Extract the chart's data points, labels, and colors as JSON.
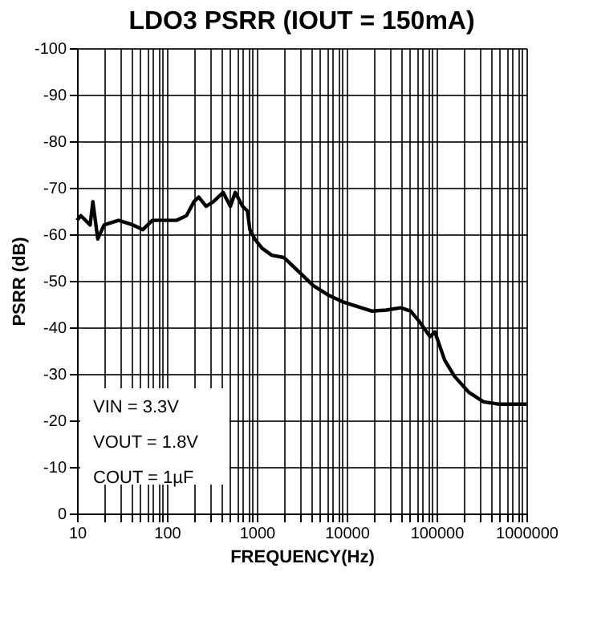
{
  "chart_data": {
    "type": "line",
    "title": "LDO3 PSRR (IOUT = 150mA)",
    "xlabel": "FREQUENCY(Hz)",
    "ylabel": "PSRR (dB)",
    "log": "x",
    "grid": true,
    "marker": "none",
    "line_style": "solid",
    "xlim": [
      10,
      1000000
    ],
    "ylim": [
      0,
      -100
    ],
    "xticks": [
      10,
      {
        "value": 20,
        "label": null
      },
      {
        "value": 30,
        "label": null
      },
      {
        "value": 40,
        "label": null
      },
      {
        "value": 50,
        "label": null
      },
      {
        "value": 60,
        "label": null
      },
      {
        "value": 70,
        "label": null
      },
      {
        "value": 80,
        "label": null
      },
      {
        "value": 90,
        "label": null
      },
      100,
      {
        "value": 200,
        "label": null
      },
      {
        "value": 300,
        "label": null
      },
      {
        "value": 400,
        "label": null
      },
      {
        "value": 500,
        "label": null
      },
      {
        "value": 600,
        "label": null
      },
      {
        "value": 700,
        "label": null
      },
      {
        "value": 800,
        "label": null
      },
      {
        "value": 900,
        "label": null
      },
      1000,
      {
        "value": 2000,
        "label": null
      },
      {
        "value": 3000,
        "label": null
      },
      {
        "value": 4000,
        "label": null
      },
      {
        "value": 5000,
        "label": null
      },
      {
        "value": 6000,
        "label": null
      },
      {
        "value": 7000,
        "label": null
      },
      {
        "value": 8000,
        "label": null
      },
      {
        "value": 9000,
        "label": null
      },
      10000,
      {
        "value": 20000,
        "label": null
      },
      {
        "value": 30000,
        "label": null
      },
      {
        "value": 40000,
        "label": null
      },
      {
        "value": 50000,
        "label": null
      },
      {
        "value": 60000,
        "label": null
      },
      {
        "value": 70000,
        "label": null
      },
      {
        "value": 80000,
        "label": null
      },
      {
        "value": 90000,
        "label": null
      },
      100000,
      {
        "value": 200000,
        "label": null
      },
      {
        "value": 300000,
        "label": null
      },
      {
        "value": 400000,
        "label": null
      },
      {
        "value": 500000,
        "label": null
      },
      {
        "value": 600000,
        "label": null
      },
      {
        "value": 700000,
        "label": null
      },
      {
        "value": 800000,
        "label": null
      },
      {
        "value": 900000,
        "label": null
      },
      1000000
    ],
    "yticks": [
      0,
      -10,
      -20,
      -30,
      -40,
      -50,
      -60,
      -70,
      -80,
      -90,
      -100
    ],
    "annotations": [
      "VIN = 3.3V",
      "VOUT = 1.8V",
      "COUT = 1µF"
    ],
    "series": [
      {
        "color": "#000000",
        "x": [
          10,
          11,
          14,
          15,
          17,
          20,
          29,
          42,
          54,
          69,
          94,
          129,
          165,
          200,
          226,
          273,
          329,
          422,
          508,
          576,
          695,
          787,
          838,
          948,
          1143,
          1468,
          2005,
          2416,
          3303,
          4236,
          6166,
          8954,
          13030,
          18930,
          27540,
          40000,
          51400,
          65900,
          84500,
          95900,
          123000,
          158000,
          230000,
          334000,
          485000,
          1000000
        ],
        "values": [
          -63,
          -64,
          -62,
          -67,
          -59,
          -62,
          -63,
          -62,
          -61,
          -63,
          -63,
          -63,
          -64,
          -67,
          -68,
          -66,
          -67,
          -69,
          -66,
          -69,
          -66,
          -65,
          -61,
          -59,
          -57,
          -55.5,
          -55,
          -53.5,
          -51,
          -49,
          -47,
          -45.5,
          -44.5,
          -43.5,
          -43.7,
          -44.2,
          -43.5,
          -41,
          -38,
          -39,
          -33,
          -29.5,
          -26,
          -24,
          -23.5,
          -23.5
        ]
      }
    ]
  }
}
